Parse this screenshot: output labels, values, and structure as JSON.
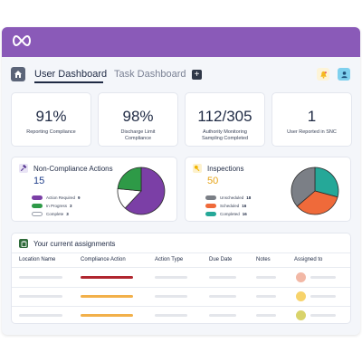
{
  "colors": {
    "brand": "#8a5ab8",
    "text": "#1f2a44",
    "muted": "#7a8194"
  },
  "header": {
    "logo_icon": "infinity-logo-icon"
  },
  "tabs": [
    {
      "label": "User Dashboard",
      "active": true
    },
    {
      "label": "Task Dashboard",
      "active": false
    }
  ],
  "toolbar": {
    "add_label": "+",
    "notification_icon": "bell-icon",
    "user_icon": "user-icon"
  },
  "stats": [
    {
      "value": "91%",
      "label": "Reporting Compliance"
    },
    {
      "value": "98%",
      "label": "Discharge Limit Compliance"
    },
    {
      "value": "112/305",
      "label": "Authority Monitoring Sampling Completed"
    },
    {
      "value": "1",
      "label": "User Reported in SNC"
    }
  ],
  "non_compliance": {
    "title": "Non-Compliance Actions",
    "count": "15",
    "icon": "gavel-icon",
    "legend": [
      {
        "label": "Action Required",
        "value": "9",
        "color": "#7b3fa6"
      },
      {
        "label": "In Progress",
        "value": "3",
        "color": "#2e9a47"
      },
      {
        "label": "Complete",
        "value": "3",
        "color": "#ffffff"
      }
    ]
  },
  "inspections": {
    "title": "Inspections",
    "count": "50",
    "icon": "key-icon",
    "legend": [
      {
        "label": "Unscheduled",
        "value": "18",
        "color": "#7b7f86"
      },
      {
        "label": "Scheduled",
        "value": "16",
        "color": "#ef6a3a"
      },
      {
        "label": "Completed",
        "value": "16",
        "color": "#25a898"
      }
    ]
  },
  "assignments": {
    "title": "Your current assignments",
    "icon": "clipboard-icon",
    "columns": [
      "Location Name",
      "Compliance Action",
      "Action Type",
      "Due Date",
      "Notes",
      "Assigned to"
    ],
    "rows": [
      {
        "action_color": "#b0262f",
        "avatar_color": "#f2b8a6"
      },
      {
        "action_color": "#f2b04a",
        "avatar_color": "#f7d36b"
      },
      {
        "action_color": "#f2b04a",
        "avatar_color": "#d9d36a"
      }
    ]
  }
}
